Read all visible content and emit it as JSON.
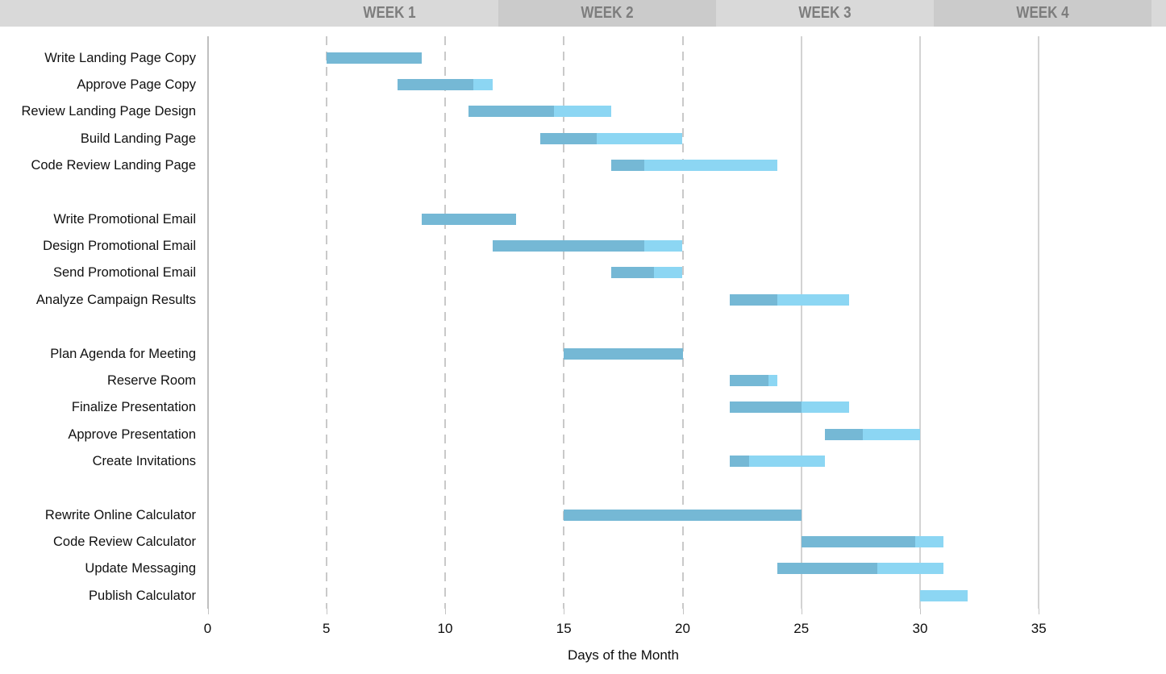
{
  "palette": {
    "bar_complete": "#75b8d5",
    "bar_remaining": "#8cd6f3",
    "header_light": "#d9d9d9",
    "header_dark": "#cbcbcb",
    "header_text": "#7d7d7d"
  },
  "header": {
    "weeks": [
      "WEEK 1",
      "WEEK 2",
      "WEEK 3",
      "WEEK 4"
    ]
  },
  "chart_data": {
    "type": "bar",
    "variant": "gantt",
    "title": "",
    "xlabel": "Days of the Month",
    "ylabel": "",
    "xlim": [
      0,
      40
    ],
    "x_ticks": [
      0,
      5,
      10,
      15,
      20,
      25,
      30,
      35
    ],
    "dashed_gridlines_at": [
      5,
      10,
      15,
      20
    ],
    "solid_gridlines_at": [
      0,
      25,
      30,
      35
    ],
    "legend": "none",
    "groups": [
      {
        "tasks": [
          {
            "label": "Write Landing Page Copy",
            "start": 5,
            "end": 9,
            "percent_complete": 100
          },
          {
            "label": "Approve Page Copy",
            "start": 8,
            "end": 12,
            "percent_complete": 80
          },
          {
            "label": "Review Landing Page Design",
            "start": 11,
            "end": 17,
            "percent_complete": 60
          },
          {
            "label": "Build Landing Page",
            "start": 14,
            "end": 20,
            "percent_complete": 40
          },
          {
            "label": "Code Review Landing Page",
            "start": 17,
            "end": 24,
            "percent_complete": 20
          }
        ]
      },
      {
        "tasks": [
          {
            "label": "Write Promotional Email",
            "start": 9,
            "end": 13,
            "percent_complete": 100
          },
          {
            "label": "Design Promotional Email",
            "start": 12,
            "end": 20,
            "percent_complete": 80
          },
          {
            "label": "Send Promotional Email",
            "start": 17,
            "end": 20,
            "percent_complete": 60
          },
          {
            "label": "Analyze Campaign Results",
            "start": 22,
            "end": 27,
            "percent_complete": 40
          }
        ]
      },
      {
        "tasks": [
          {
            "label": "Plan Agenda for Meeting",
            "start": 15,
            "end": 20,
            "percent_complete": 100
          },
          {
            "label": "Reserve Room",
            "start": 22,
            "end": 24,
            "percent_complete": 80
          },
          {
            "label": "Finalize Presentation",
            "start": 22,
            "end": 27,
            "percent_complete": 60
          },
          {
            "label": "Approve Presentation",
            "start": 26,
            "end": 30,
            "percent_complete": 40
          },
          {
            "label": "Create Invitations",
            "start": 22,
            "end": 26,
            "percent_complete": 20
          }
        ]
      },
      {
        "tasks": [
          {
            "label": "Rewrite Online Calculator",
            "start": 15,
            "end": 25,
            "percent_complete": 100
          },
          {
            "label": "Code Review Calculator",
            "start": 25,
            "end": 31,
            "percent_complete": 80
          },
          {
            "label": "Update Messaging",
            "start": 24,
            "end": 31,
            "percent_complete": 60
          },
          {
            "label": "Publish Calculator",
            "start": 30,
            "end": 32,
            "percent_complete": 0
          }
        ]
      }
    ]
  }
}
